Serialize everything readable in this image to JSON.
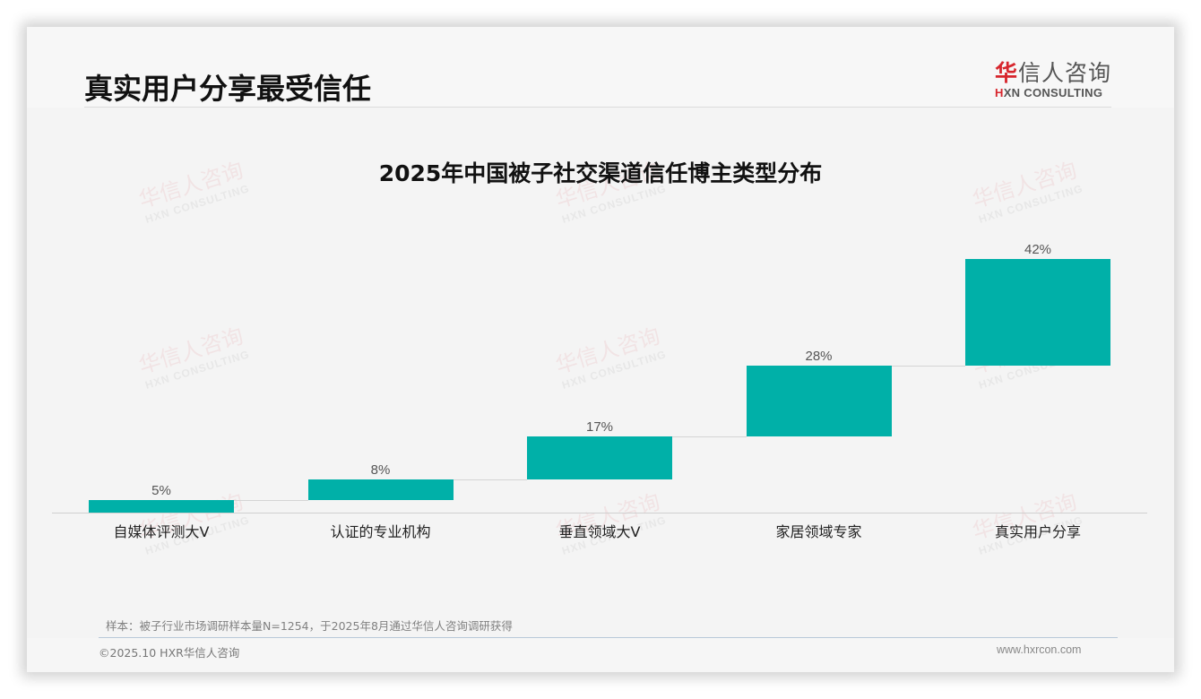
{
  "header": {
    "title": "真实用户分享最受信任",
    "logo": {
      "cn_accent": "华",
      "cn_rest": "信人咨询",
      "en_accent": "H",
      "en_rest": "XN CONSULTING"
    }
  },
  "watermark": {
    "cn": "华信人咨询",
    "en": "HXN CONSULTING"
  },
  "chart_data": {
    "type": "bar",
    "subtype": "waterfall",
    "title": "2025年中国被子社交渠道信任博主类型分布",
    "categories": [
      "自媒体评测大V",
      "认证的专业机构",
      "垂直领域大V",
      "家居领域专家",
      "真实用户分享"
    ],
    "values": [
      5,
      8,
      17,
      28,
      42
    ],
    "labels": [
      "5%",
      "8%",
      "17%",
      "28%",
      "42%"
    ],
    "cumulative_start": [
      0,
      5,
      13,
      30,
      58
    ],
    "cumulative_end": [
      5,
      13,
      30,
      58,
      100
    ],
    "unit": "%",
    "xlabel": "",
    "ylabel": "",
    "ylim": [
      0,
      100
    ],
    "grid": false,
    "legend": "none",
    "bar_color": "#00b0a8"
  },
  "footer": {
    "note": "样本：被子行业市场调研样本量N=1254，于2025年8月通过华信人咨询调研获得",
    "copyright": "©2025.10 HXR华信人咨询",
    "website": "www.hxrcon.com"
  },
  "colors": {
    "bar": "#00b0a8",
    "brand_red": "#d7262d",
    "background": "#f4f4f4"
  }
}
